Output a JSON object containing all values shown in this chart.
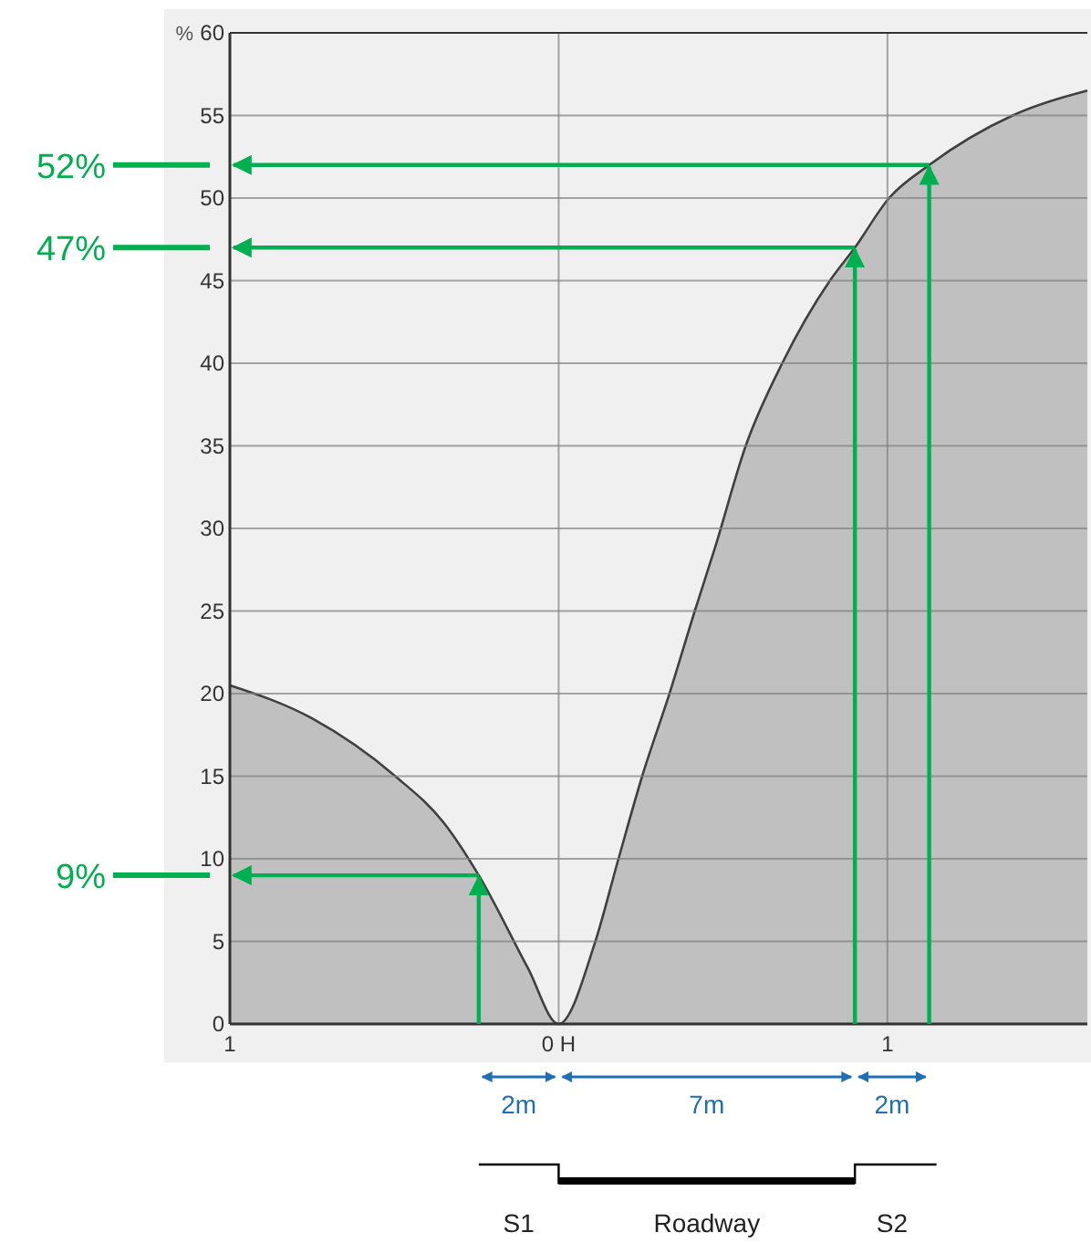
{
  "chart_data": {
    "type": "area",
    "ylabel": "%",
    "x": [
      -1,
      -0.75,
      -0.497,
      -0.35,
      -0.243,
      -0.094,
      0,
      0.11,
      0.182,
      0.254,
      0.337,
      0.414,
      0.475,
      0.569,
      0.68,
      0.825,
      0.901,
      1.005,
      1.127,
      1.381,
      1.608
    ],
    "series": [
      {
        "color": "#c0c0c0",
        "values": [
          20.5,
          18.5,
          15,
          12.2,
          9,
          3.4,
          0,
          4.9,
          10,
          15,
          20,
          25,
          28.8,
          35,
          40,
          45,
          47,
          50,
          52,
          55,
          56.5
        ]
      }
    ],
    "xlim": [
      -1,
      1.608
    ],
    "xticks": [
      {
        "value": -1,
        "label": "1"
      },
      {
        "value": 0,
        "label": "0 H"
      },
      {
        "value": 1,
        "label": "1"
      }
    ],
    "ylim": [
      0,
      60
    ],
    "yticks": [
      0,
      5,
      10,
      15,
      20,
      25,
      30,
      35,
      40,
      45,
      50,
      55,
      60
    ],
    "grid": true,
    "ref_lines": [
      {
        "axis": "x",
        "value": -0.243,
        "color": "#00b050"
      },
      {
        "axis": "x",
        "value": 0.901,
        "color": "#00b050"
      },
      {
        "axis": "x",
        "value": 1.127,
        "color": "#00b050"
      },
      {
        "axis": "y",
        "value": 9,
        "label": "9%",
        "color": "#00b050"
      },
      {
        "axis": "y",
        "value": 47,
        "label": "47%",
        "color": "#00b050"
      },
      {
        "axis": "y",
        "value": 52,
        "label": "52%",
        "color": "#00b050"
      }
    ],
    "annotations": [
      "2m",
      "7m",
      "2m",
      "S1",
      "Roadway",
      "S2"
    ]
  }
}
